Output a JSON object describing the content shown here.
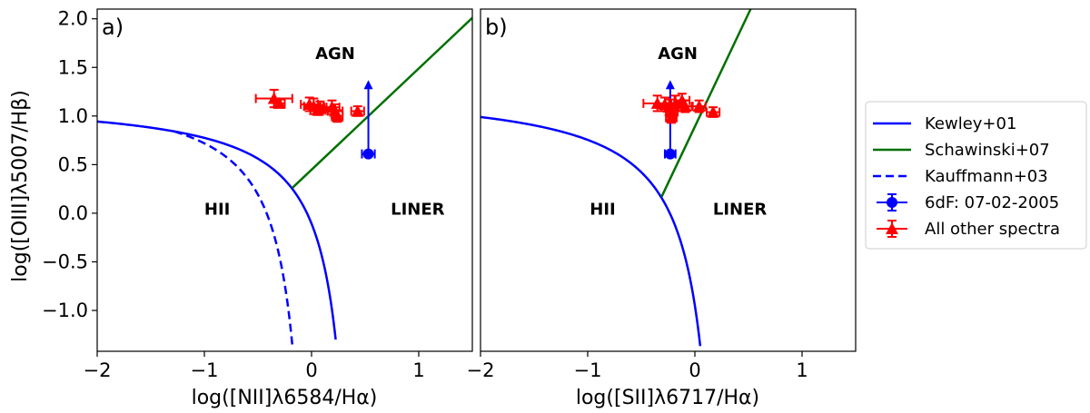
{
  "chart_data": [
    {
      "type": "scatter",
      "panel_label": "a)",
      "xlabel": "log([NII]λ6584/Hα)",
      "ylabel": "log([OIII]λ5007/Hβ)",
      "xlim": [
        -2,
        1.5
      ],
      "ylim": [
        -1.42,
        2.1
      ],
      "x_ticks": [
        -2,
        -1,
        0,
        1
      ],
      "x_tick_labels": [
        "−2",
        "−1",
        "0",
        "1"
      ],
      "y_ticks": [
        -1.0,
        -0.5,
        0.0,
        0.5,
        1.0,
        1.5,
        2.0
      ],
      "y_tick_labels": [
        "−1.0",
        "−0.5",
        "0.0",
        "0.5",
        "1.0",
        "1.5",
        "2.0"
      ],
      "region_labels": [
        {
          "text": "AGN",
          "x": 0.22,
          "y": 1.65
        },
        {
          "text": "HII",
          "x": -0.88,
          "y": 0.05
        },
        {
          "text": "LINER",
          "x": 0.99,
          "y": 0.05
        }
      ],
      "curves": [
        {
          "name": "Kewley+01",
          "kind": "kewley_nii",
          "color": "#0000ff",
          "dash": false,
          "x_range": [
            -2,
            0.225
          ]
        },
        {
          "name": "Kauffmann+03",
          "kind": "kauffmann_nii",
          "color": "#0000ff",
          "dash": true,
          "x_range": [
            -1.28,
            -0.18
          ]
        },
        {
          "name": "Schawinski+07",
          "kind": "line",
          "color": "#007000",
          "dash": false,
          "points": [
            [
              -0.18,
              0.26
            ],
            [
              1.5,
              2.01
            ]
          ]
        }
      ],
      "series": [
        {
          "name": "6dF: 07-02-2005",
          "color": "#0000ff",
          "marker": "circle",
          "points": [
            {
              "x": 0.53,
              "y": 0.61,
              "xerr": 0.06,
              "yerr": 0.0,
              "upper_arrow": 1.36
            }
          ]
        },
        {
          "name": "All other spectra",
          "color": "#ff0000",
          "marker": "triangle",
          "points": [
            {
              "x": -0.35,
              "y": 1.18,
              "xerr": 0.17,
              "yerr": 0.09
            },
            {
              "x": -0.3,
              "y": 1.13,
              "xerr": 0.05,
              "yerr": 0.04
            },
            {
              "x": -0.02,
              "y": 1.12,
              "xerr": 0.08,
              "yerr": 0.07
            },
            {
              "x": 0.02,
              "y": 1.1,
              "xerr": 0.09,
              "yerr": 0.08
            },
            {
              "x": 0.08,
              "y": 1.09,
              "xerr": 0.06,
              "yerr": 0.06
            },
            {
              "x": 0.06,
              "y": 1.06,
              "xerr": 0.07,
              "yerr": 0.05
            },
            {
              "x": 0.19,
              "y": 1.09,
              "xerr": 0.07,
              "yerr": 0.07
            },
            {
              "x": 0.22,
              "y": 1.05,
              "xerr": 0.07,
              "yerr": 0.07
            },
            {
              "x": 0.24,
              "y": 1.0,
              "xerr": 0.05,
              "yerr": 0.06
            },
            {
              "x": 0.43,
              "y": 1.05,
              "xerr": 0.06,
              "yerr": 0.05
            }
          ]
        }
      ]
    },
    {
      "type": "scatter",
      "panel_label": "b)",
      "xlabel": "log([SII]λ6717/Hα)",
      "ylabel": "",
      "xlim": [
        -2,
        1.5
      ],
      "ylim": [
        -1.42,
        2.1
      ],
      "x_ticks": [
        -2,
        -1,
        0,
        1
      ],
      "x_tick_labels": [
        "−2",
        "−1",
        "0",
        "1"
      ],
      "region_labels": [
        {
          "text": "AGN",
          "x": -0.16,
          "y": 1.65
        },
        {
          "text": "HII",
          "x": -0.86,
          "y": 0.05
        },
        {
          "text": "LINER",
          "x": 0.42,
          "y": 0.05
        }
      ],
      "curves": [
        {
          "name": "Kewley+01",
          "kind": "kewley_sii",
          "color": "#0000ff",
          "dash": false,
          "x_range": [
            -2,
            0.05
          ]
        },
        {
          "name": "Schawinski+07",
          "kind": "line",
          "color": "#007000",
          "dash": false,
          "points": [
            [
              -0.31,
              0.17
            ],
            [
              0.52,
              2.1
            ]
          ]
        }
      ],
      "series": [
        {
          "name": "6dF: 07-02-2005",
          "color": "#0000ff",
          "marker": "circle",
          "points": [
            {
              "x": -0.23,
              "y": 0.61,
              "xerr": 0.05,
              "yerr": 0.0,
              "upper_arrow": 1.36
            }
          ]
        },
        {
          "name": "All other spectra",
          "color": "#ff0000",
          "marker": "triangle",
          "points": [
            {
              "x": -0.35,
              "y": 1.13,
              "xerr": 0.13,
              "yerr": 0.08
            },
            {
              "x": -0.28,
              "y": 1.12,
              "xerr": 0.06,
              "yerr": 0.07
            },
            {
              "x": -0.24,
              "y": 1.09,
              "xerr": 0.07,
              "yerr": 0.08
            },
            {
              "x": -0.21,
              "y": 1.05,
              "xerr": 0.05,
              "yerr": 0.07
            },
            {
              "x": -0.18,
              "y": 1.13,
              "xerr": 0.06,
              "yerr": 0.08
            },
            {
              "x": -0.12,
              "y": 1.16,
              "xerr": 0.07,
              "yerr": 0.07
            },
            {
              "x": -0.09,
              "y": 1.1,
              "xerr": 0.06,
              "yerr": 0.06
            },
            {
              "x": -0.22,
              "y": 0.99,
              "xerr": 0.05,
              "yerr": 0.06
            },
            {
              "x": 0.04,
              "y": 1.1,
              "xerr": 0.06,
              "yerr": 0.06
            },
            {
              "x": 0.17,
              "y": 1.04,
              "xerr": 0.06,
              "yerr": 0.05
            }
          ]
        }
      ]
    }
  ],
  "legend": {
    "position": "right",
    "entries": [
      {
        "label": "Kewley+01",
        "color": "#0000ff",
        "style": "solid-line"
      },
      {
        "label": "Schawinski+07",
        "color": "#007000",
        "style": "solid-line"
      },
      {
        "label": "Kauffmann+03",
        "color": "#0000ff",
        "style": "dashed-line"
      },
      {
        "label": "6dF: 07-02-2005",
        "color": "#0000ff",
        "style": "circle-errorbar"
      },
      {
        "label": "All other spectra",
        "color": "#ff0000",
        "style": "triangle-errorbar"
      }
    ]
  }
}
